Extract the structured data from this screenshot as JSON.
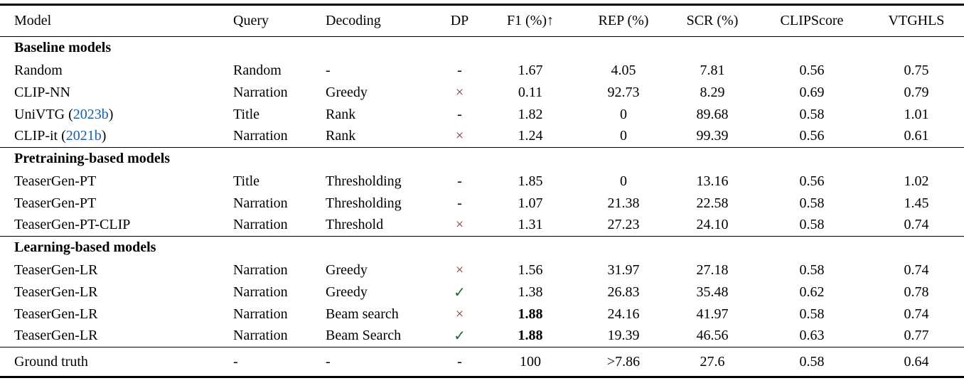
{
  "colors": {
    "citation_blue": "#1b5fa8",
    "check_green": "#196b2e",
    "cross_red": "#8a2b2b",
    "text": "#000000",
    "background": "#ffffff"
  },
  "glyphs": {
    "check": "✓",
    "cross": "×",
    "dash": "-",
    "up_arrow": "↑"
  },
  "table": {
    "columns": [
      {
        "key": "model",
        "label": "Model"
      },
      {
        "key": "query",
        "label": "Query"
      },
      {
        "key": "decoding",
        "label": "Decoding"
      },
      {
        "key": "dp",
        "label": "DP"
      },
      {
        "key": "f1",
        "label": "F1 (%)↑"
      },
      {
        "key": "rep",
        "label": "REP (%)"
      },
      {
        "key": "scr",
        "label": "SCR (%)"
      },
      {
        "key": "clip",
        "label": "CLIPScore"
      },
      {
        "key": "vtg",
        "label": "VTGHLS"
      }
    ],
    "sections": [
      {
        "header": "Baseline models",
        "rows": [
          {
            "model": "Random",
            "query": "Random",
            "decoding": "-",
            "dp": "-",
            "f1": "1.67",
            "rep": "4.05",
            "scr": "7.81",
            "clip": "0.56",
            "vtg": "0.75"
          },
          {
            "model": "CLIP-NN",
            "query": "Narration",
            "decoding": "Greedy",
            "dp": "×",
            "f1": "0.11",
            "rep": "92.73",
            "scr": "8.29",
            "clip": "0.69",
            "vtg": "0.79"
          },
          {
            "model": "UniVTG (",
            "cite": "2023b",
            "close": ")",
            "query": "Title",
            "decoding": "Rank",
            "dp": "-",
            "f1": "1.82",
            "rep": "0",
            "scr": "89.68",
            "clip": "0.58",
            "vtg": "1.01"
          },
          {
            "model": "CLIP-it (",
            "cite": "2021b",
            "close": ")",
            "query": "Narration",
            "decoding": "Rank",
            "dp": "×",
            "f1": "1.24",
            "rep": "0",
            "scr": "99.39",
            "clip": "0.56",
            "vtg": "0.61"
          }
        ]
      },
      {
        "header": "Pretraining-based models",
        "rows": [
          {
            "model": "TeaserGen-PT",
            "query": "Title",
            "decoding": "Thresholding",
            "dp": "-",
            "f1": "1.85",
            "rep": "0",
            "scr": "13.16",
            "clip": "0.56",
            "vtg": "1.02"
          },
          {
            "model": "TeaserGen-PT",
            "query": "Narration",
            "decoding": "Thresholding",
            "dp": "-",
            "f1": "1.07",
            "rep": "21.38",
            "scr": "22.58",
            "clip": "0.58",
            "vtg": "1.45"
          },
          {
            "model": "TeaserGen-PT-CLIP",
            "query": "Narration",
            "decoding": "Threshold",
            "dp": "×",
            "f1": "1.31",
            "rep": "27.23",
            "scr": "24.10",
            "clip": "0.58",
            "vtg": "0.74"
          }
        ]
      },
      {
        "header": "Learning-based models",
        "rows": [
          {
            "model": "TeaserGen-LR",
            "query": "Narration",
            "decoding": "Greedy",
            "dp": "×",
            "f1": "1.56",
            "rep": "31.97",
            "scr": "27.18",
            "clip": "0.58",
            "vtg": "0.74"
          },
          {
            "model": "TeaserGen-LR",
            "query": "Narration",
            "decoding": "Greedy",
            "dp": "✓",
            "f1": "1.38",
            "rep": "26.83",
            "scr": "35.48",
            "clip": "0.62",
            "vtg": "0.78"
          },
          {
            "model": "TeaserGen-LR",
            "query": "Narration",
            "decoding": "Beam search",
            "dp": "×",
            "f1": "1.88",
            "f1_bold": true,
            "rep": "24.16",
            "scr": "41.97",
            "clip": "0.58",
            "vtg": "0.74"
          },
          {
            "model": "TeaserGen-LR",
            "query": "Narration",
            "decoding": "Beam Search",
            "dp": "✓",
            "f1": "1.88",
            "f1_bold": true,
            "rep": "19.39",
            "scr": "46.56",
            "clip": "0.63",
            "vtg": "0.77"
          }
        ]
      }
    ],
    "footer": {
      "model": "Ground truth",
      "query": "-",
      "decoding": "-",
      "dp": "-",
      "f1": "100",
      "rep": ">7.86",
      "scr": "27.6",
      "clip": "0.58",
      "vtg": "0.64"
    }
  }
}
